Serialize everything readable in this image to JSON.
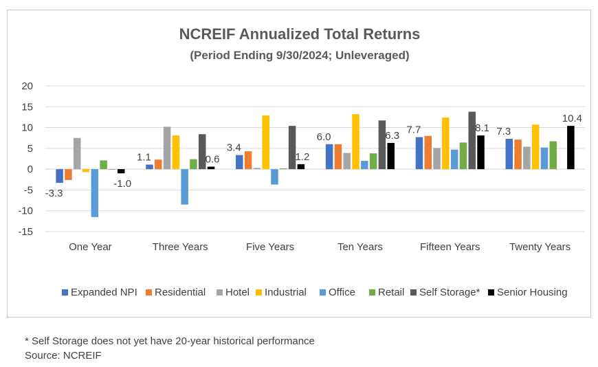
{
  "chart_data": {
    "type": "bar",
    "title": "NCREIF Annualized Total Returns",
    "subtitle": "(Period Ending 9/30/2024; Unleveraged)",
    "xlabel": "",
    "ylabel": "",
    "ylim": [
      -15,
      20
    ],
    "yticks": [
      20,
      15,
      10,
      5,
      0,
      -5,
      -10,
      -15
    ],
    "grid": true,
    "legend": "bottom",
    "categories": [
      "One Year",
      "Three Years",
      "Five Years",
      "Ten Years",
      "Fifteen Years",
      "Twenty Years"
    ],
    "series": [
      {
        "name": "Expanded NPI",
        "color": "#4472c4",
        "values": [
          -3.3,
          1.1,
          3.4,
          6.0,
          7.7,
          7.3
        ],
        "labels": [
          "-3.3",
          "1.1",
          "3.4",
          "6.0",
          "7.7",
          "7.3"
        ]
      },
      {
        "name": "Residential",
        "color": "#ed7d31",
        "values": [
          -2.6,
          2.3,
          4.3,
          6.0,
          8.0,
          7.1
        ],
        "labels": [
          null,
          null,
          null,
          null,
          null,
          null
        ]
      },
      {
        "name": "Hotel",
        "color": "#a5a5a5",
        "values": [
          7.5,
          10.2,
          0.3,
          3.9,
          5.1,
          5.4
        ],
        "labels": [
          null,
          null,
          null,
          null,
          null,
          null
        ]
      },
      {
        "name": "Industrial",
        "color": "#ffc000",
        "values": [
          -0.7,
          8.1,
          12.9,
          13.2,
          12.4,
          10.7
        ],
        "labels": [
          null,
          null,
          null,
          null,
          null,
          null
        ]
      },
      {
        "name": "Office",
        "color": "#5b9bd5",
        "values": [
          -11.5,
          -8.5,
          -3.7,
          2.0,
          4.7,
          5.2
        ],
        "labels": [
          null,
          null,
          null,
          null,
          null,
          null
        ]
      },
      {
        "name": "Retail",
        "color": "#70ad47",
        "values": [
          2.1,
          2.4,
          0.2,
          3.8,
          6.4,
          6.7
        ],
        "labels": [
          null,
          null,
          null,
          null,
          null,
          null
        ]
      },
      {
        "name": "Self Storage*",
        "color": "#595959",
        "values": [
          0.0,
          8.4,
          10.4,
          11.7,
          13.8,
          null
        ],
        "labels": [
          null,
          null,
          null,
          null,
          null,
          null
        ]
      },
      {
        "name": "Senior Housing",
        "color": "#000000",
        "values": [
          -1.0,
          0.6,
          1.2,
          6.3,
          8.1,
          10.4
        ],
        "labels": [
          "-1.0",
          "0.6",
          "1.2",
          "6.3",
          "8.1",
          "10.4"
        ]
      }
    ]
  },
  "footnote": {
    "line1": "* Self Storage does not yet have 20-year historical performance",
    "line2": "Source:  NCREIF"
  }
}
